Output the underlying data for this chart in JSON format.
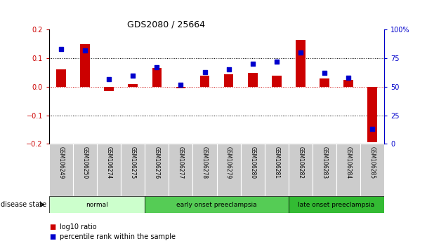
{
  "title": "GDS2080 / 25664",
  "samples": [
    "GSM106249",
    "GSM106250",
    "GSM106274",
    "GSM106275",
    "GSM106276",
    "GSM106277",
    "GSM106278",
    "GSM106279",
    "GSM106280",
    "GSM106281",
    "GSM106282",
    "GSM106283",
    "GSM106284",
    "GSM106285"
  ],
  "log10_ratio": [
    0.06,
    0.15,
    -0.015,
    0.01,
    0.065,
    -0.005,
    0.04,
    0.045,
    0.05,
    0.04,
    0.165,
    0.03,
    0.025,
    -0.195
  ],
  "percentile_rank": [
    83,
    82,
    57,
    60,
    67,
    52,
    63,
    65,
    70,
    72,
    80,
    62,
    58,
    13
  ],
  "bar_color": "#cc0000",
  "dot_color": "#0000cc",
  "groups": [
    {
      "label": "normal",
      "start": 0,
      "end": 4,
      "color": "#ccffcc"
    },
    {
      "label": "early onset preeclampsia",
      "start": 4,
      "end": 10,
      "color": "#55cc55"
    },
    {
      "label": "late onset preeclampsia",
      "start": 10,
      "end": 14,
      "color": "#33bb33"
    }
  ],
  "ylim_left": [
    -0.2,
    0.2
  ],
  "ylim_right": [
    0,
    100
  ],
  "yticks_left": [
    -0.2,
    -0.1,
    0.0,
    0.1,
    0.2
  ],
  "yticks_right": [
    0,
    25,
    50,
    75,
    100
  ],
  "hlines": [
    0.1,
    -0.1
  ],
  "hline_zero_color": "#cc0000",
  "background_color": "#ffffff",
  "tick_label_bg": "#cccccc",
  "legend_log10": "log10 ratio",
  "legend_pct": "percentile rank within the sample",
  "bar_width": 0.4,
  "dot_size": 15
}
